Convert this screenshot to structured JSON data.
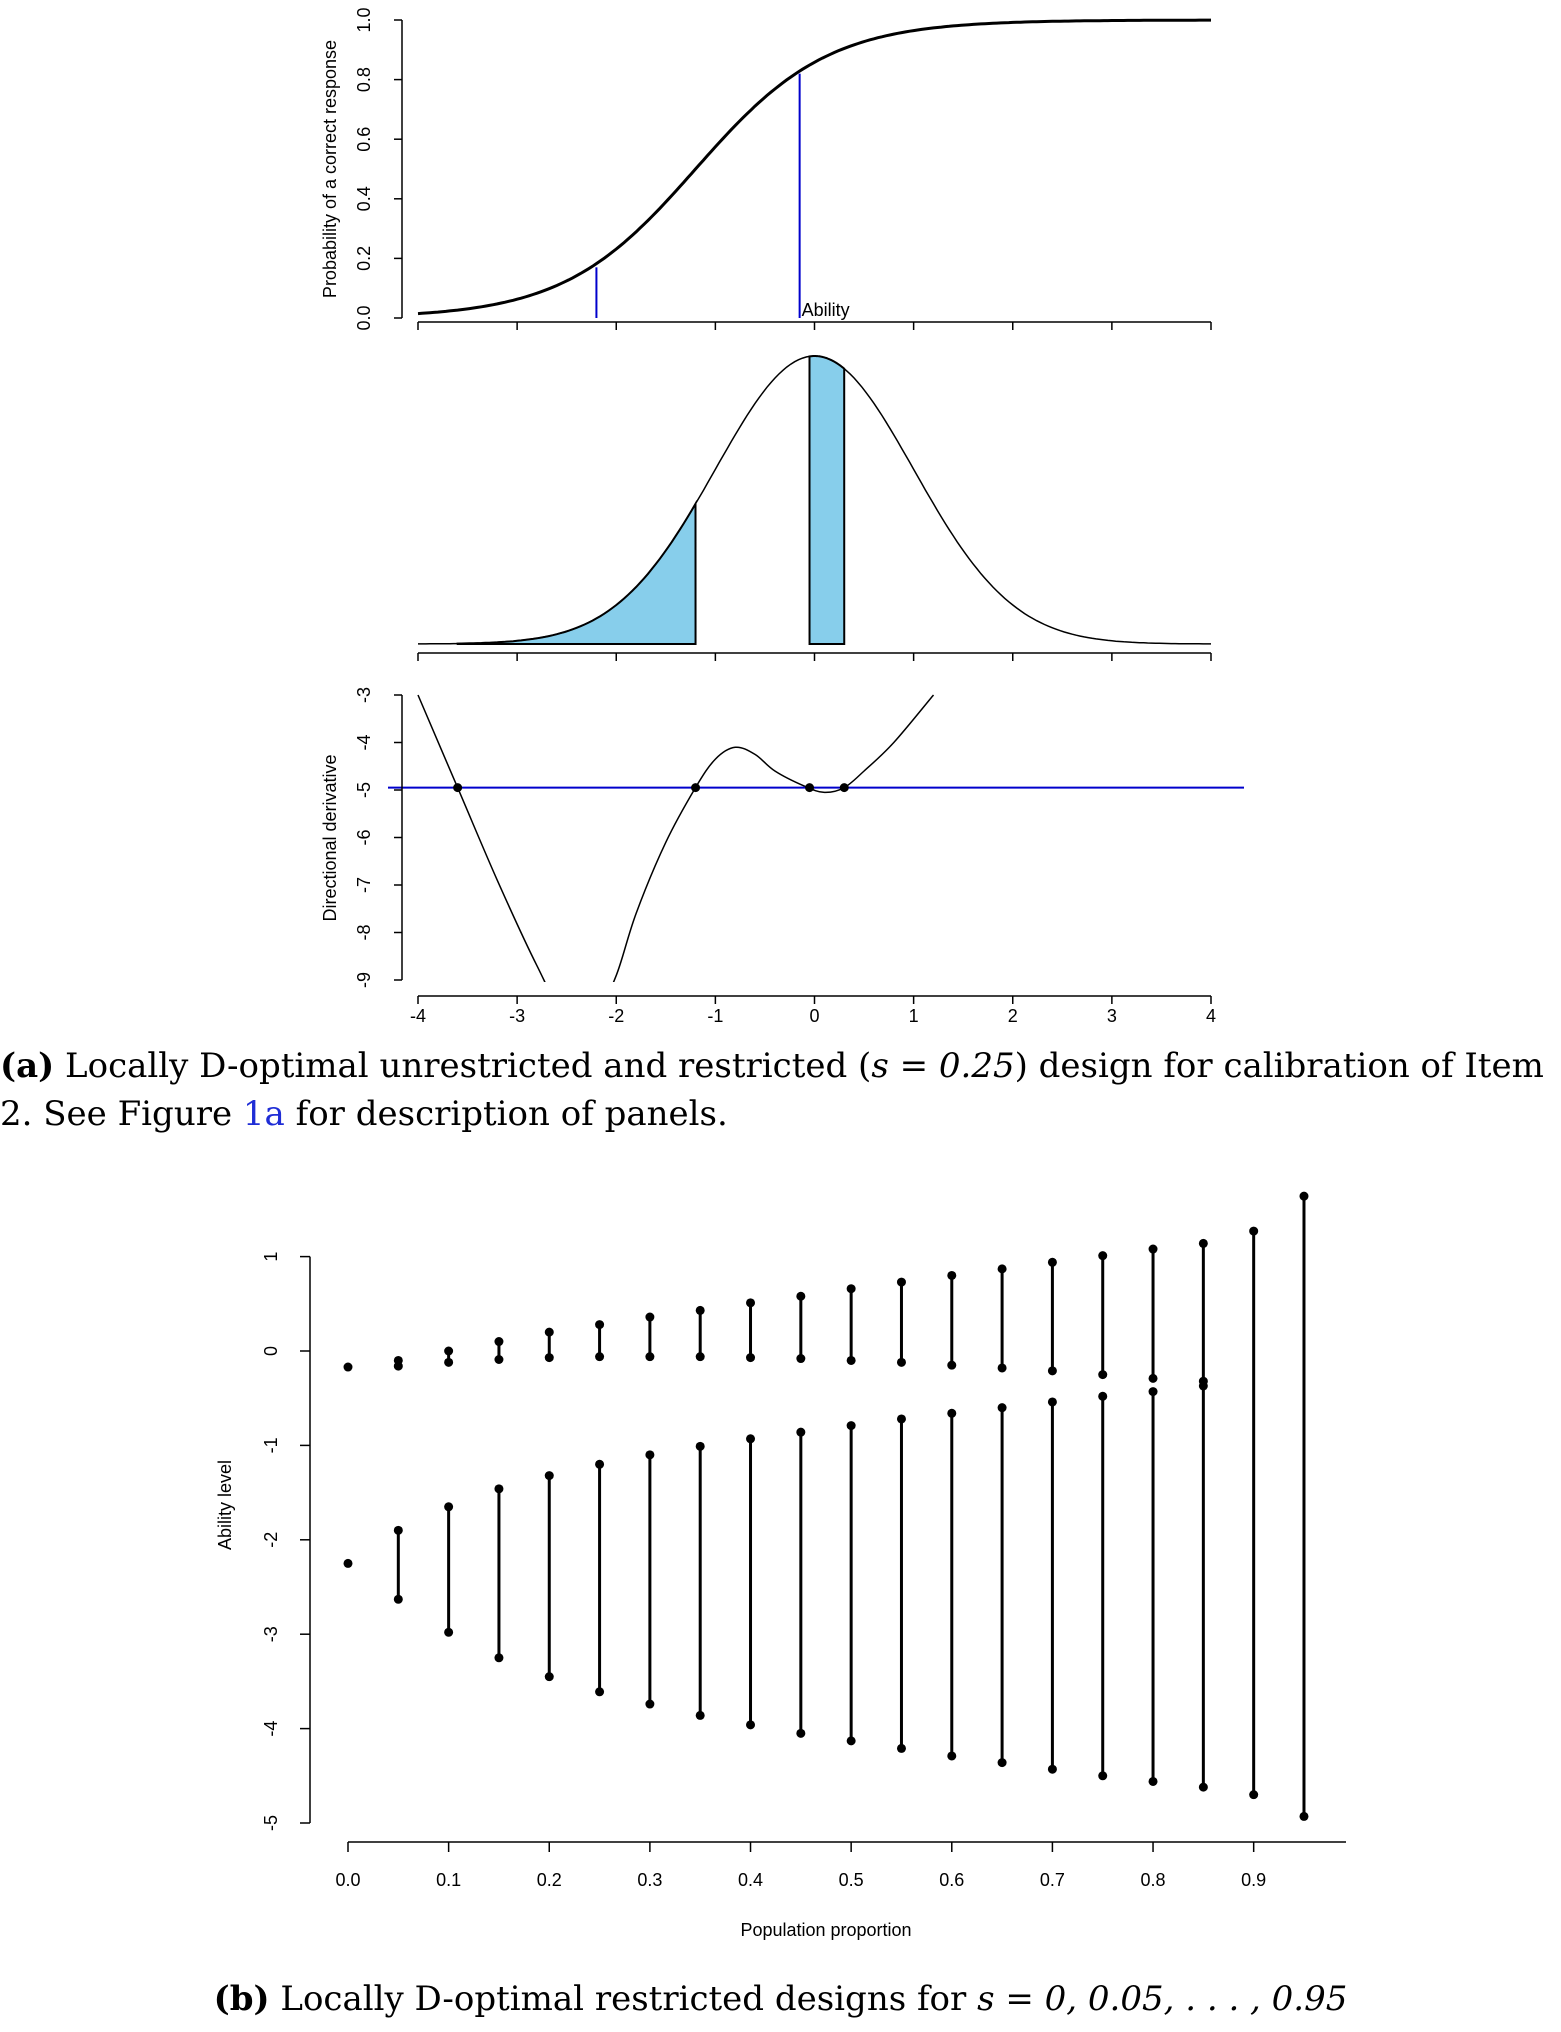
{
  "figure_a": {
    "caption_label": "(a)",
    "caption_text_before": " Locally D-optimal unrestricted and restricted (",
    "caption_math": "s = 0.25",
    "caption_text_after": ") design for calibration of Item 2. See Figure ",
    "caption_ref": "1a",
    "caption_text_end": " for description of panels.",
    "x_ticks": [
      "-4",
      "-3",
      "-2",
      "-1",
      "0",
      "1",
      "2",
      "3",
      "4"
    ]
  },
  "figure_b": {
    "caption_label": "(b)",
    "caption_text": " Locally D-optimal restricted designs for ",
    "caption_math": "s = 0, 0.05, . . . , 0.95"
  },
  "colors": {
    "curve": "#000000",
    "marker_line": "#0000cc",
    "shade": "#87ceeb"
  },
  "chart_data": [
    {
      "type": "line",
      "panel": "a-top",
      "ylabel": "Probability of a correct response",
      "annotation": "Ability",
      "ylim": [
        0,
        1
      ],
      "yticks": [
        "0.0",
        "0.2",
        "0.4",
        "0.6",
        "0.8",
        "1.0"
      ],
      "xlim": [
        -4,
        4
      ],
      "curve": {
        "a": 1.5,
        "b": -1.2
      },
      "vlines": [
        {
          "x": -2.2,
          "y": 0.17
        },
        {
          "x": -0.15,
          "y": 0.82
        }
      ]
    },
    {
      "type": "area",
      "panel": "a-middle",
      "ylabel": "",
      "xlim": [
        -4,
        4
      ],
      "shaded_intervals": [
        [
          -3.6,
          -1.2
        ],
        [
          -0.05,
          0.3
        ]
      ]
    },
    {
      "type": "line",
      "panel": "a-bottom",
      "ylabel": "Directional derivative",
      "ylim": [
        -9,
        -3
      ],
      "yticks": [
        "-9",
        "-8",
        "-7",
        "-6",
        "-5",
        "-4",
        "-3"
      ],
      "xlim": [
        -4,
        4
      ],
      "xticks": [
        "-4",
        "-3",
        "-2",
        "-1",
        "0",
        "1",
        "2",
        "3",
        "4"
      ],
      "hline": -4.95,
      "curve_points": [
        [
          -4.0,
          -3.0
        ],
        [
          -3.6,
          -4.95
        ],
        [
          -3.2,
          -6.9
        ],
        [
          -2.8,
          -8.7
        ],
        [
          -2.5,
          -9.8
        ],
        [
          -2.2,
          -9.7
        ],
        [
          -2.0,
          -8.9
        ],
        [
          -1.8,
          -7.6
        ],
        [
          -1.5,
          -6.1
        ],
        [
          -1.2,
          -4.95
        ],
        [
          -1.0,
          -4.35
        ],
        [
          -0.8,
          -4.1
        ],
        [
          -0.6,
          -4.25
        ],
        [
          -0.4,
          -4.6
        ],
        [
          -0.1,
          -4.92
        ],
        [
          0.1,
          -5.05
        ],
        [
          0.3,
          -4.95
        ],
        [
          0.5,
          -4.6
        ],
        [
          0.8,
          -4.0
        ],
        [
          1.2,
          -3.0
        ]
      ],
      "points": [
        [
          -3.6,
          -4.95
        ],
        [
          -1.2,
          -4.95
        ],
        [
          -0.05,
          -4.95
        ],
        [
          0.3,
          -4.95
        ]
      ]
    },
    {
      "type": "scatter",
      "panel": "b",
      "xlabel": "Population proportion",
      "ylabel": "Ability level",
      "xlim": [
        0,
        0.95
      ],
      "ylim": [
        -5,
        1.6
      ],
      "xticks": [
        "0.0",
        "0.1",
        "0.2",
        "0.3",
        "0.4",
        "0.5",
        "0.6",
        "0.7",
        "0.8",
        "0.9"
      ],
      "yticks": [
        "-5",
        "-4",
        "-3",
        "-2",
        "-1",
        "0",
        "1"
      ],
      "designs": [
        {
          "s": 0.0,
          "upper": [
            -0.17
          ],
          "lower": [
            -2.25
          ]
        },
        {
          "s": 0.05,
          "upper": [
            -0.1,
            -0.16
          ],
          "lower": [
            -1.9,
            -2.63
          ]
        },
        {
          "s": 0.1,
          "upper": [
            0.0,
            -0.12
          ],
          "lower": [
            -1.65,
            -2.98
          ]
        },
        {
          "s": 0.15,
          "upper": [
            0.1,
            -0.09
          ],
          "lower": [
            -1.46,
            -3.25
          ]
        },
        {
          "s": 0.2,
          "upper": [
            0.2,
            -0.07
          ],
          "lower": [
            -1.32,
            -3.45
          ]
        },
        {
          "s": 0.25,
          "upper": [
            0.28,
            -0.06
          ],
          "lower": [
            -1.2,
            -3.61
          ]
        },
        {
          "s": 0.3,
          "upper": [
            0.36,
            -0.06
          ],
          "lower": [
            -1.1,
            -3.74
          ]
        },
        {
          "s": 0.35,
          "upper": [
            0.43,
            -0.06
          ],
          "lower": [
            -1.01,
            -3.86
          ]
        },
        {
          "s": 0.4,
          "upper": [
            0.51,
            -0.07
          ],
          "lower": [
            -0.93,
            -3.96
          ]
        },
        {
          "s": 0.45,
          "upper": [
            0.58,
            -0.08
          ],
          "lower": [
            -0.86,
            -4.05
          ]
        },
        {
          "s": 0.5,
          "upper": [
            0.66,
            -0.1
          ],
          "lower": [
            -0.79,
            -4.13
          ]
        },
        {
          "s": 0.55,
          "upper": [
            0.73,
            -0.12
          ],
          "lower": [
            -0.72,
            -4.21
          ]
        },
        {
          "s": 0.6,
          "upper": [
            0.8,
            -0.15
          ],
          "lower": [
            -0.66,
            -4.29
          ]
        },
        {
          "s": 0.65,
          "upper": [
            0.87,
            -0.18
          ],
          "lower": [
            -0.6,
            -4.36
          ]
        },
        {
          "s": 0.7,
          "upper": [
            0.94,
            -0.21
          ],
          "lower": [
            -0.54,
            -4.43
          ]
        },
        {
          "s": 0.75,
          "upper": [
            1.01,
            -0.25
          ],
          "lower": [
            -0.48,
            -4.5
          ]
        },
        {
          "s": 0.8,
          "upper": [
            1.08,
            -0.29
          ],
          "lower": [
            -0.43,
            -4.56
          ]
        },
        {
          "s": 0.85,
          "upper": [
            1.14,
            -0.32
          ],
          "lower": [
            -0.37,
            -4.62
          ]
        },
        {
          "s": 0.9,
          "upper": [
            1.27
          ],
          "lower": [
            -4.7
          ]
        },
        {
          "s": 0.95,
          "upper": [
            1.64
          ],
          "lower": [
            -4.93
          ]
        }
      ]
    }
  ]
}
